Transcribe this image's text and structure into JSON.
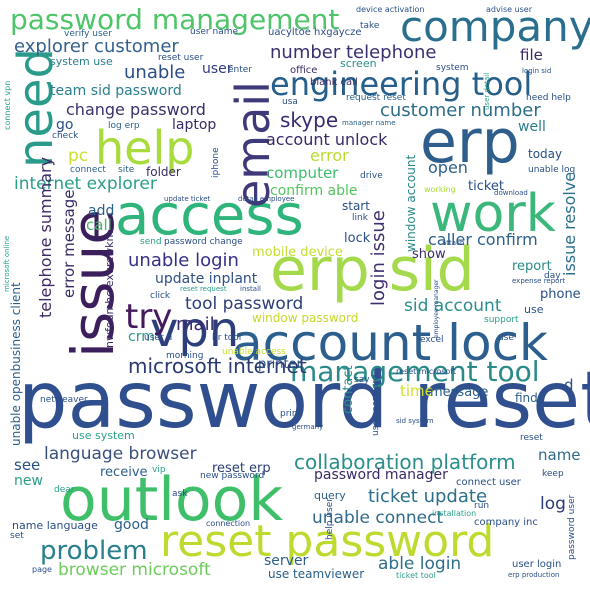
{
  "words": [
    {
      "text": "password reset",
      "color": "#2f4f8f"
    },
    {
      "text": "outlook",
      "color": "#3fbf6a"
    },
    {
      "text": "account lock",
      "color": "#2c5f8d"
    },
    {
      "text": "erp sid",
      "color": "#a3d94a"
    },
    {
      "text": "access",
      "color": "#2fb47c"
    },
    {
      "text": "company",
      "color": "#2a6f8e"
    },
    {
      "text": "erp",
      "color": "#2e5e8c"
    },
    {
      "text": "work",
      "color": "#3bb77c"
    },
    {
      "text": "reset password",
      "color": "#bcdb2e"
    },
    {
      "text": "issue",
      "color": "#3b1f5c"
    },
    {
      "text": "email",
      "color": "#3e3a7a"
    },
    {
      "text": "need",
      "color": "#2a9b8a"
    },
    {
      "text": "help",
      "color": "#a7dc3c"
    },
    {
      "text": "vpn",
      "color": "#2c3f7c"
    },
    {
      "text": "engineering tool",
      "color": "#265f8a"
    },
    {
      "text": "management tool",
      "color": "#2a8a8a"
    },
    {
      "text": "password management",
      "color": "#4fc46a"
    },
    {
      "text": "try",
      "color": "#451a5c"
    },
    {
      "text": "problem",
      "color": "#2a7f8c"
    },
    {
      "text": "collaboration platform",
      "color": "#2a8f8a"
    },
    {
      "text": "microsoft internet",
      "color": "#2b3a6f"
    },
    {
      "text": "explorer customer",
      "color": "#34608c"
    },
    {
      "text": "number telephone",
      "color": "#3a2f6f"
    },
    {
      "text": "unable login",
      "color": "#34308a"
    },
    {
      "text": "ticket update",
      "color": "#2b6f8c"
    },
    {
      "text": "internet explorer",
      "color": "#2a9f89"
    },
    {
      "text": "change password",
      "color": "#3b2f6f"
    },
    {
      "text": "customer number",
      "color": "#2e6d8a"
    },
    {
      "text": "browser microsoft",
      "color": "#6ccd5a"
    },
    {
      "text": "language browser",
      "color": "#3a4f7f"
    },
    {
      "text": "unable connect",
      "color": "#30698a"
    },
    {
      "text": "able login",
      "color": "#2e6e8a"
    },
    {
      "text": "login issue",
      "color": "#3f2f70"
    },
    {
      "text": "tool password",
      "color": "#2c3d78"
    },
    {
      "text": "update inplant",
      "color": "#2f4f88"
    },
    {
      "text": "password manager",
      "color": "#3b2a66"
    },
    {
      "text": "telephone summary",
      "color": "#3e2a66"
    },
    {
      "text": "sid account",
      "color": "#2a8e8a"
    },
    {
      "text": "account unlock",
      "color": "#3a2a66"
    },
    {
      "text": "issue resolve",
      "color": "#2a6f8c"
    },
    {
      "text": "skype",
      "color": "#3a2a70"
    },
    {
      "text": "mail",
      "color": "#3a2a70"
    },
    {
      "text": "unable",
      "color": "#2b4d88"
    },
    {
      "text": "error message",
      "color": "#3a2a66"
    },
    {
      "text": "open",
      "color": "#2c5f8a"
    },
    {
      "text": "caller confirm",
      "color": "#2c5f8a"
    },
    {
      "text": "confirm able",
      "color": "#54c45e"
    },
    {
      "text": "computer",
      "color": "#3bbf6c"
    },
    {
      "text": "error",
      "color": "#b8dc30"
    },
    {
      "text": "team sid password",
      "color": "#2a7e8c"
    },
    {
      "text": "window password",
      "color": "#c8d82a"
    },
    {
      "text": "mobile device",
      "color": "#c7dd30"
    },
    {
      "text": "time",
      "color": "#d0e030"
    },
    {
      "text": "message",
      "color": "#2c5f8a"
    },
    {
      "text": "reset erp",
      "color": "#2a3f78"
    },
    {
      "text": "name",
      "color": "#2d6a8c"
    },
    {
      "text": "log",
      "color": "#2c3a78"
    },
    {
      "text": "file",
      "color": "#3a2a66"
    },
    {
      "text": "user",
      "color": "#2e3b80"
    },
    {
      "text": "call",
      "color": "#4ab56a"
    },
    {
      "text": "add",
      "color": "#2a5f8a"
    },
    {
      "text": "crm",
      "color": "#2a9a8a"
    },
    {
      "text": "pc",
      "color": "#c7e02e"
    },
    {
      "text": "go",
      "color": "#2b4f88"
    },
    {
      "text": "see",
      "color": "#2a4f88"
    },
    {
      "text": "new",
      "color": "#2a9e89"
    },
    {
      "text": "good",
      "color": "#2a5f8a"
    },
    {
      "text": "ticket",
      "color": "#2a4f88"
    },
    {
      "text": "show",
      "color": "#3a2a66"
    },
    {
      "text": "lock",
      "color": "#2a4f88"
    },
    {
      "text": "phone",
      "color": "#2a4f88"
    },
    {
      "text": "start",
      "color": "#2a4f88"
    },
    {
      "text": "server",
      "color": "#2c5f8a"
    },
    {
      "text": "laptop",
      "color": "#3a2a66"
    },
    {
      "text": "well",
      "color": "#2a7e8c"
    },
    {
      "text": "report",
      "color": "#2a8a8a"
    },
    {
      "text": "window account",
      "color": "#2a8a8a"
    },
    {
      "text": "unable openbusiness client",
      "color": "#2c5f8a"
    },
    {
      "text": "contact",
      "color": "#2a8e8a"
    },
    {
      "text": "printer",
      "color": "#2a4f88"
    },
    {
      "text": "use",
      "color": "#2a4f88"
    },
    {
      "text": "folder",
      "color": "#3a2a66"
    },
    {
      "text": "today",
      "color": "#2a4f88"
    },
    {
      "text": "find",
      "color": "#2c5f8a"
    },
    {
      "text": "d",
      "color": "#2a4f88"
    },
    {
      "text": "receive",
      "color": "#2c5f8a"
    },
    {
      "text": "use teamviewer",
      "color": "#2a5f8a"
    },
    {
      "text": "use system",
      "color": "#2a9e89"
    },
    {
      "text": "system use",
      "color": "#2a7e8c"
    },
    {
      "text": "nwfodmhc exurcwkm",
      "color": "#3a2a66"
    },
    {
      "text": "connect user",
      "color": "#2a4f88"
    },
    {
      "text": "company inc",
      "color": "#2a4f88"
    },
    {
      "text": "query",
      "color": "#2a5f8a"
    },
    {
      "text": "user login",
      "color": "#2a4f88"
    },
    {
      "text": "name language",
      "color": "#2a4f88"
    },
    {
      "text": "user name",
      "color": "#2a4f88"
    },
    {
      "text": "reset user",
      "color": "#2a4f88"
    },
    {
      "text": "verify user",
      "color": "#2a5f8a"
    },
    {
      "text": "uacyltoe hxgaycze",
      "color": "#2a4f88"
    },
    {
      "text": "device activation",
      "color": "#2a4f88"
    },
    {
      "text": "advise user",
      "color": "#2a4f88"
    },
    {
      "text": "take",
      "color": "#2a4f88"
    },
    {
      "text": "screen",
      "color": "#2a8e8a"
    },
    {
      "text": "office",
      "color": "#3a2a66"
    },
    {
      "text": "blank call",
      "color": "#3a2a66"
    },
    {
      "text": "request reset",
      "color": "#2a5f8a"
    },
    {
      "text": "manager name",
      "color": "#2a5f8a"
    },
    {
      "text": "log erp",
      "color": "#2a5f8a"
    },
    {
      "text": "check",
      "color": "#2a4f88"
    },
    {
      "text": "connect",
      "color": "#2a5f8a"
    },
    {
      "text": "site",
      "color": "#2a5f8a"
    },
    {
      "text": "enter",
      "color": "#2a4f88"
    },
    {
      "text": "system",
      "color": "#2a4f88"
    },
    {
      "text": "login sid",
      "color": "#2a4f88"
    },
    {
      "text": "need help",
      "color": "#2a4f88"
    },
    {
      "text": "drive",
      "color": "#2a4f88"
    },
    {
      "text": "working",
      "color": "#a7dc3c"
    },
    {
      "text": "download",
      "color": "#2a4f88"
    },
    {
      "text": "unable log",
      "color": "#2a4f88"
    },
    {
      "text": "day",
      "color": "#2a4f88"
    },
    {
      "text": "expense report",
      "color": "#2a4f88"
    },
    {
      "text": "support",
      "color": "#2a9e89"
    },
    {
      "text": "use",
      "color": "#2a4f88"
    },
    {
      "text": "excel",
      "color": "#2a4f88"
    },
    {
      "text": "reset microsoft",
      "color": "#2a4f88"
    },
    {
      "text": "say",
      "color": "#2a4f88"
    },
    {
      "text": "print",
      "color": "#2a4f88"
    },
    {
      "text": "sid system",
      "color": "#2a4f88"
    },
    {
      "text": "germany",
      "color": "#2a4f88"
    },
    {
      "text": "installation",
      "color": "#2a9e89"
    },
    {
      "text": "run",
      "color": "#2a4f88"
    },
    {
      "text": "keep",
      "color": "#2a4f88"
    },
    {
      "text": "connection",
      "color": "#2a4f88"
    },
    {
      "text": "ask",
      "color": "#2a4f88"
    },
    {
      "text": "dear",
      "color": "#2a9e89"
    },
    {
      "text": "vip",
      "color": "#2a9e89"
    },
    {
      "text": "set",
      "color": "#2a4f88"
    },
    {
      "text": "page",
      "color": "#2a4f88"
    },
    {
      "text": "ticket tool",
      "color": "#2a9e89"
    },
    {
      "text": "erp production",
      "color": "#2a4f88"
    },
    {
      "text": "help user",
      "color": "#2a4f88"
    },
    {
      "text": "netweaver",
      "color": "#2a4f88"
    },
    {
      "text": "morning",
      "color": "#2a4f88"
    },
    {
      "text": "unable access",
      "color": "#c7dd30"
    },
    {
      "text": "new password",
      "color": "#2a4f88"
    },
    {
      "text": "hr tool",
      "color": "#2a4f88"
    },
    {
      "text": "password change",
      "color": "#2a4f88"
    },
    {
      "text": "send",
      "color": "#2a9e89"
    },
    {
      "text": "click",
      "color": "#2a4f88"
    },
    {
      "text": "reset request",
      "color": "#2a9e89"
    },
    {
      "text": "install",
      "color": "#2a4f88"
    },
    {
      "text": "update ticket",
      "color": "#2a4f88"
    },
    {
      "text": "detail employee",
      "color": "#2a4f88"
    },
    {
      "text": "iphone",
      "color": "#2a4f88"
    },
    {
      "text": "link",
      "color": "#2a4f88"
    },
    {
      "text": "attach",
      "color": "#2a4f88"
    },
    {
      "text": "employee manager",
      "color": "#2a4f88"
    },
    {
      "text": "microsoft online",
      "color": "#2a9e89"
    },
    {
      "text": "connect vpn",
      "color": "#2a9e89"
    },
    {
      "text": "user detail",
      "color": "#2a9e89"
    },
    {
      "text": "password user",
      "color": "#2a4f88"
    },
    {
      "text": "use password",
      "color": "#2a4f88"
    },
    {
      "text": "reset",
      "color": "#2a4f88"
    },
    {
      "text": "user d",
      "color": "#2a4f88"
    },
    {
      "text": "usa",
      "color": "#2a4f88"
    }
  ]
}
